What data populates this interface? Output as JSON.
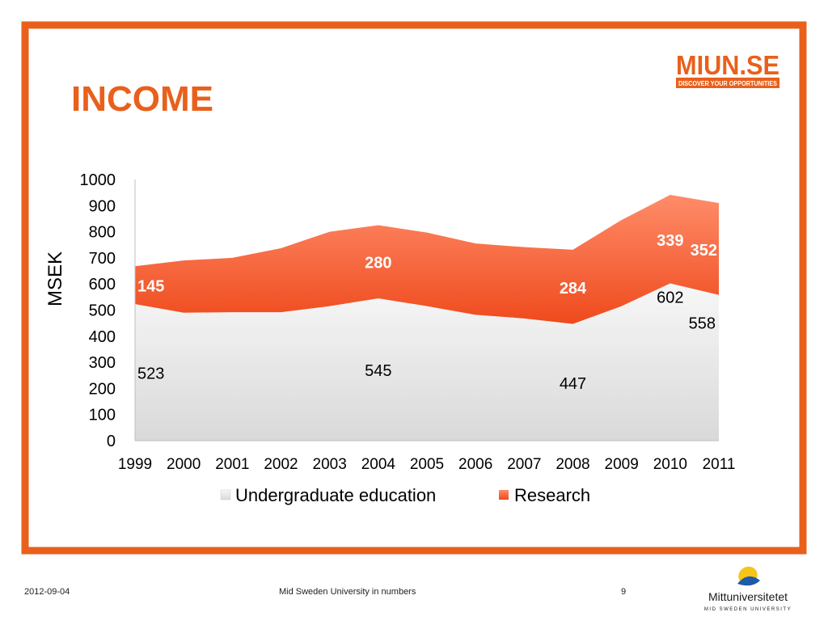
{
  "slide": {
    "title": "INCOME",
    "logo": {
      "text": "MIUN.SE",
      "tagline": "DISCOVER YOUR OPPORTUNITIES"
    },
    "footer": {
      "date": "2012-09-04",
      "center": "Mid Sweden University in numbers",
      "page": "9",
      "university_name": "Mittuniversitetet",
      "university_subtitle": "MID SWEDEN UNIVERSITY"
    },
    "colors": {
      "accent": "#e8601c",
      "research": "#f26b43",
      "education": "#e9e9e9"
    }
  },
  "chart_data": {
    "type": "area",
    "stacked": true,
    "title": "",
    "xlabel": "",
    "ylabel": "MSEK",
    "ylim": [
      0,
      1000
    ],
    "yticks": [
      0,
      100,
      200,
      300,
      400,
      500,
      600,
      700,
      800,
      900,
      1000
    ],
    "x": [
      "1999",
      "2000",
      "2001",
      "2002",
      "2003",
      "2004",
      "2005",
      "2006",
      "2007",
      "2008",
      "2009",
      "2010",
      "2011"
    ],
    "series": [
      {
        "name": "Undergraduate education",
        "color": "#e9e9e9",
        "values": [
          523,
          490,
          492,
          492,
          515,
          545,
          515,
          482,
          468,
          447,
          515,
          602,
          558
        ]
      },
      {
        "name": "Research",
        "color": "#f26b43",
        "values": [
          145,
          200,
          208,
          245,
          285,
          280,
          282,
          273,
          273,
          284,
          330,
          339,
          352
        ]
      }
    ],
    "data_labels": [
      {
        "series": 0,
        "index": 0,
        "text": "523"
      },
      {
        "series": 0,
        "index": 5,
        "text": "545"
      },
      {
        "series": 0,
        "index": 9,
        "text": "447"
      },
      {
        "series": 0,
        "index": 11,
        "text": "602"
      },
      {
        "series": 0,
        "index": 12,
        "text": "558"
      },
      {
        "series": 1,
        "index": 0,
        "text": "145"
      },
      {
        "series": 1,
        "index": 5,
        "text": "280"
      },
      {
        "series": 1,
        "index": 9,
        "text": "284"
      },
      {
        "series": 1,
        "index": 11,
        "text": "339"
      },
      {
        "series": 1,
        "index": 12,
        "text": "352"
      }
    ],
    "legend": {
      "position": "bottom"
    },
    "grid": false
  }
}
